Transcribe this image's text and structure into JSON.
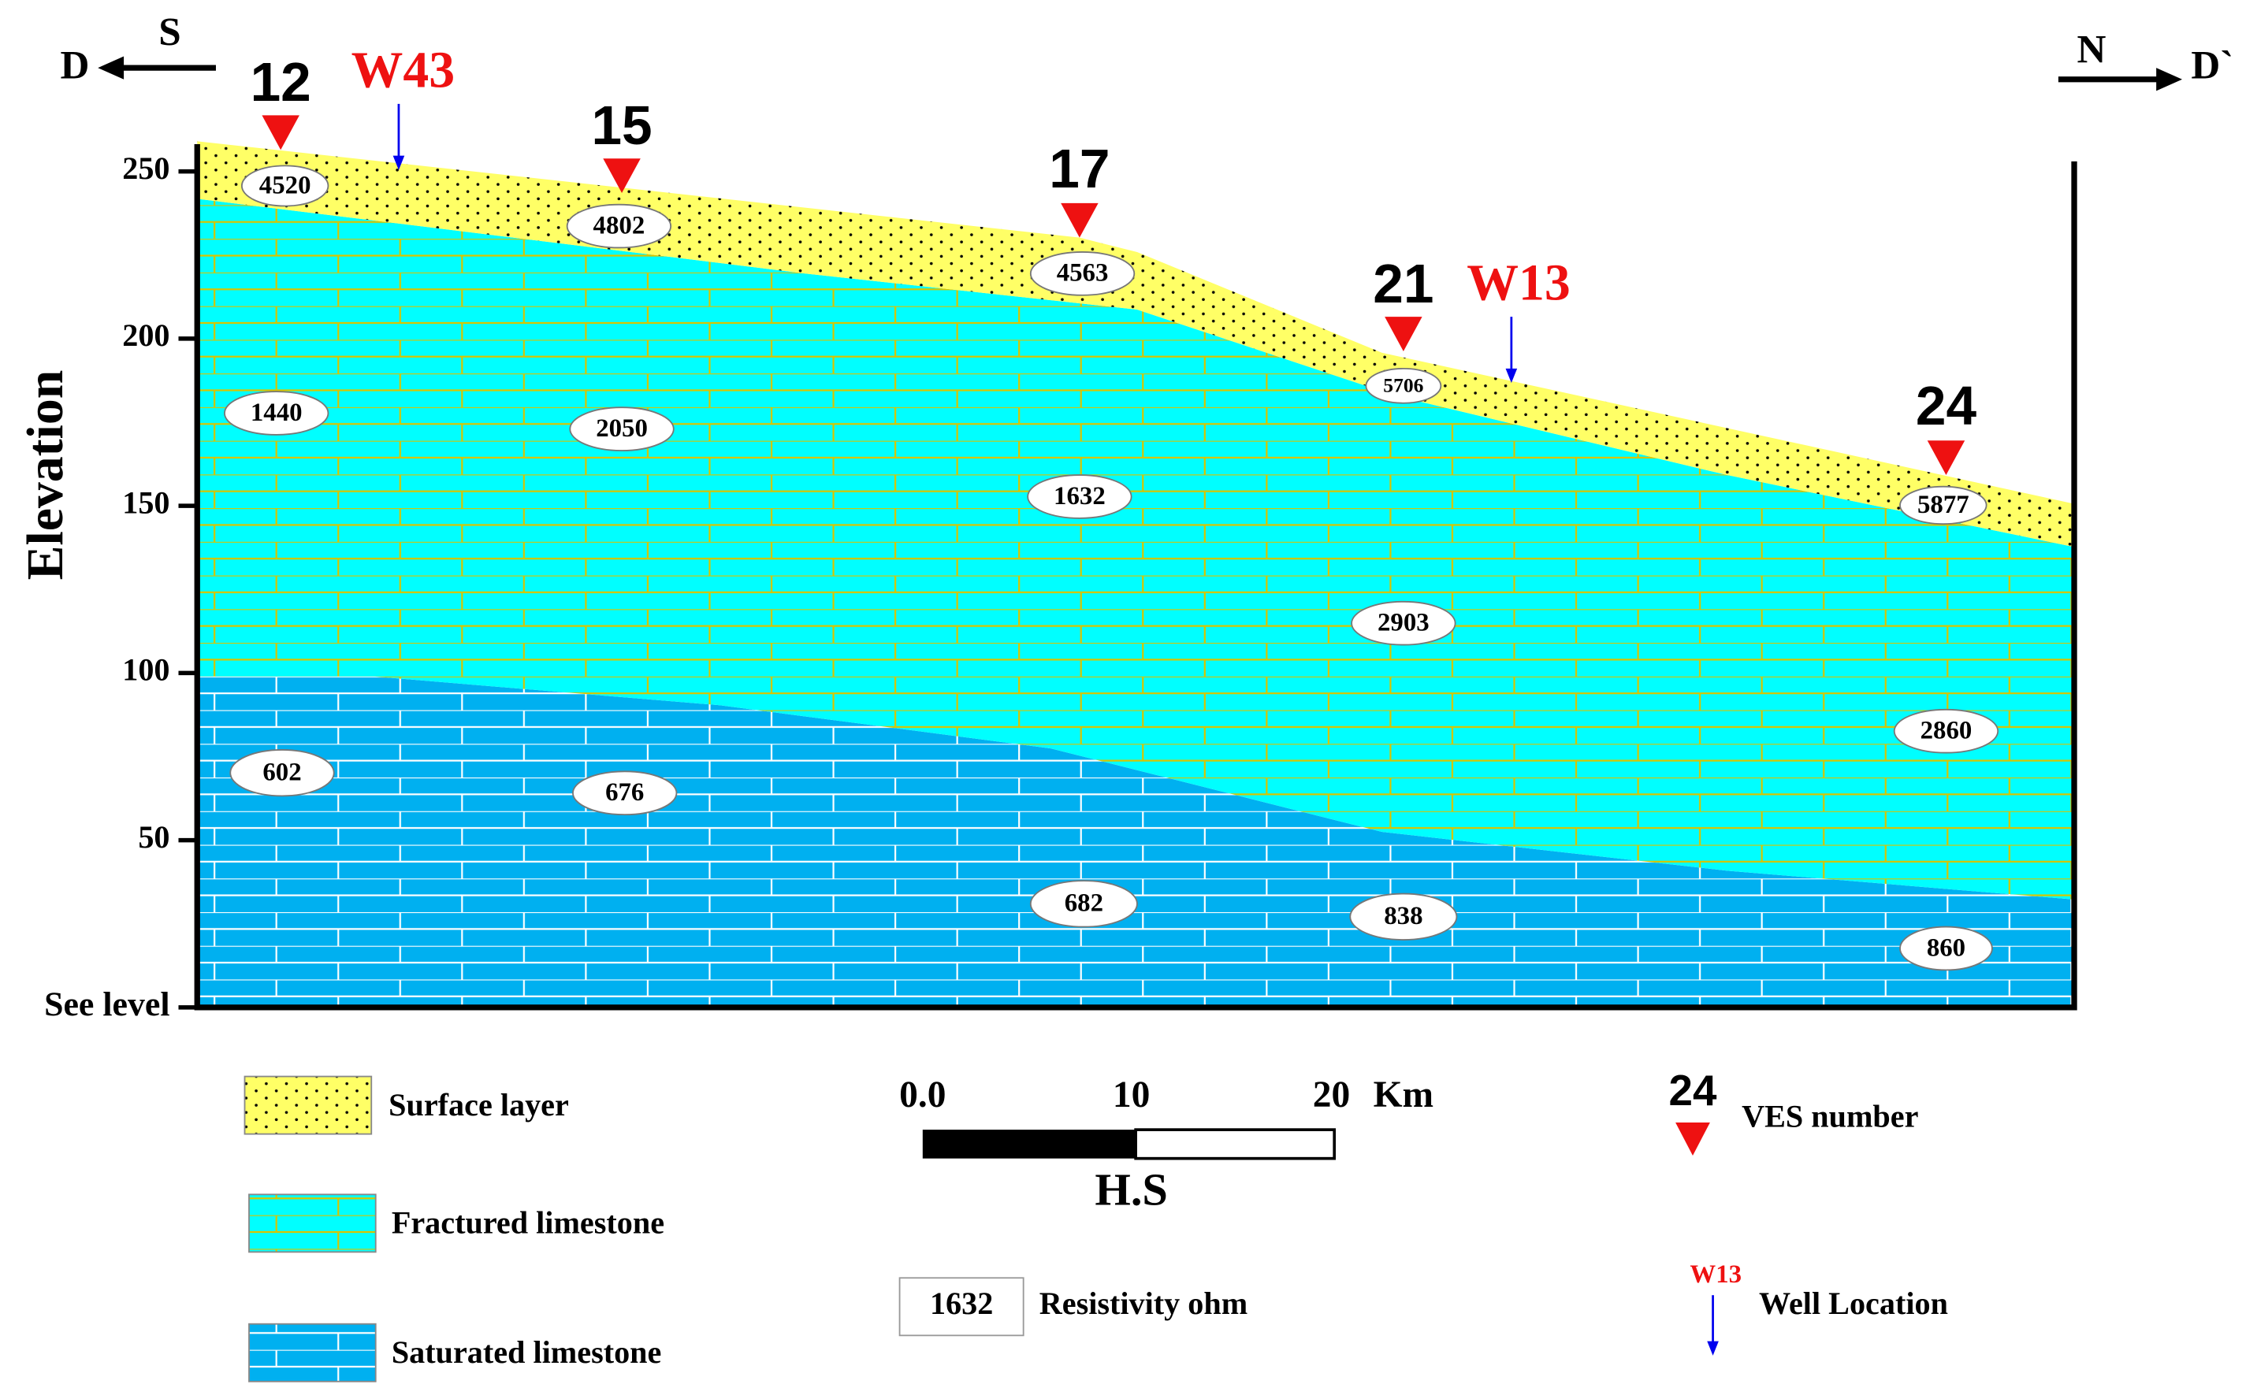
{
  "directions": {
    "left_end": "D",
    "left_dir": "S",
    "right_dir": "N",
    "right_end": "D`"
  },
  "axis": {
    "title": "Elevation",
    "ticks": [
      {
        "value": 0,
        "label": "See level"
      },
      50,
      100,
      150,
      200,
      250
    ]
  },
  "ves": [
    "12",
    "15",
    "17",
    "21",
    "24"
  ],
  "wells": [
    "W43",
    "W13"
  ],
  "resistivity": [
    4520,
    4802,
    4563,
    5706,
    5877,
    1440,
    2050,
    1632,
    2903,
    2860,
    602,
    676,
    682,
    838,
    860
  ],
  "legend": {
    "surface": "Surface layer",
    "fractured": "Fractured limestone",
    "saturated": "Saturated limestone",
    "resistivity_sample": "1632",
    "resistivity": "Resistivity ohm",
    "ves_sample": "24",
    "ves": "VES number",
    "well_sample": "W13",
    "well": "Well Location"
  },
  "scale_bar": {
    "labels": [
      "0.0",
      "10",
      "20"
    ],
    "unit": "Km",
    "title": "H.S"
  }
}
